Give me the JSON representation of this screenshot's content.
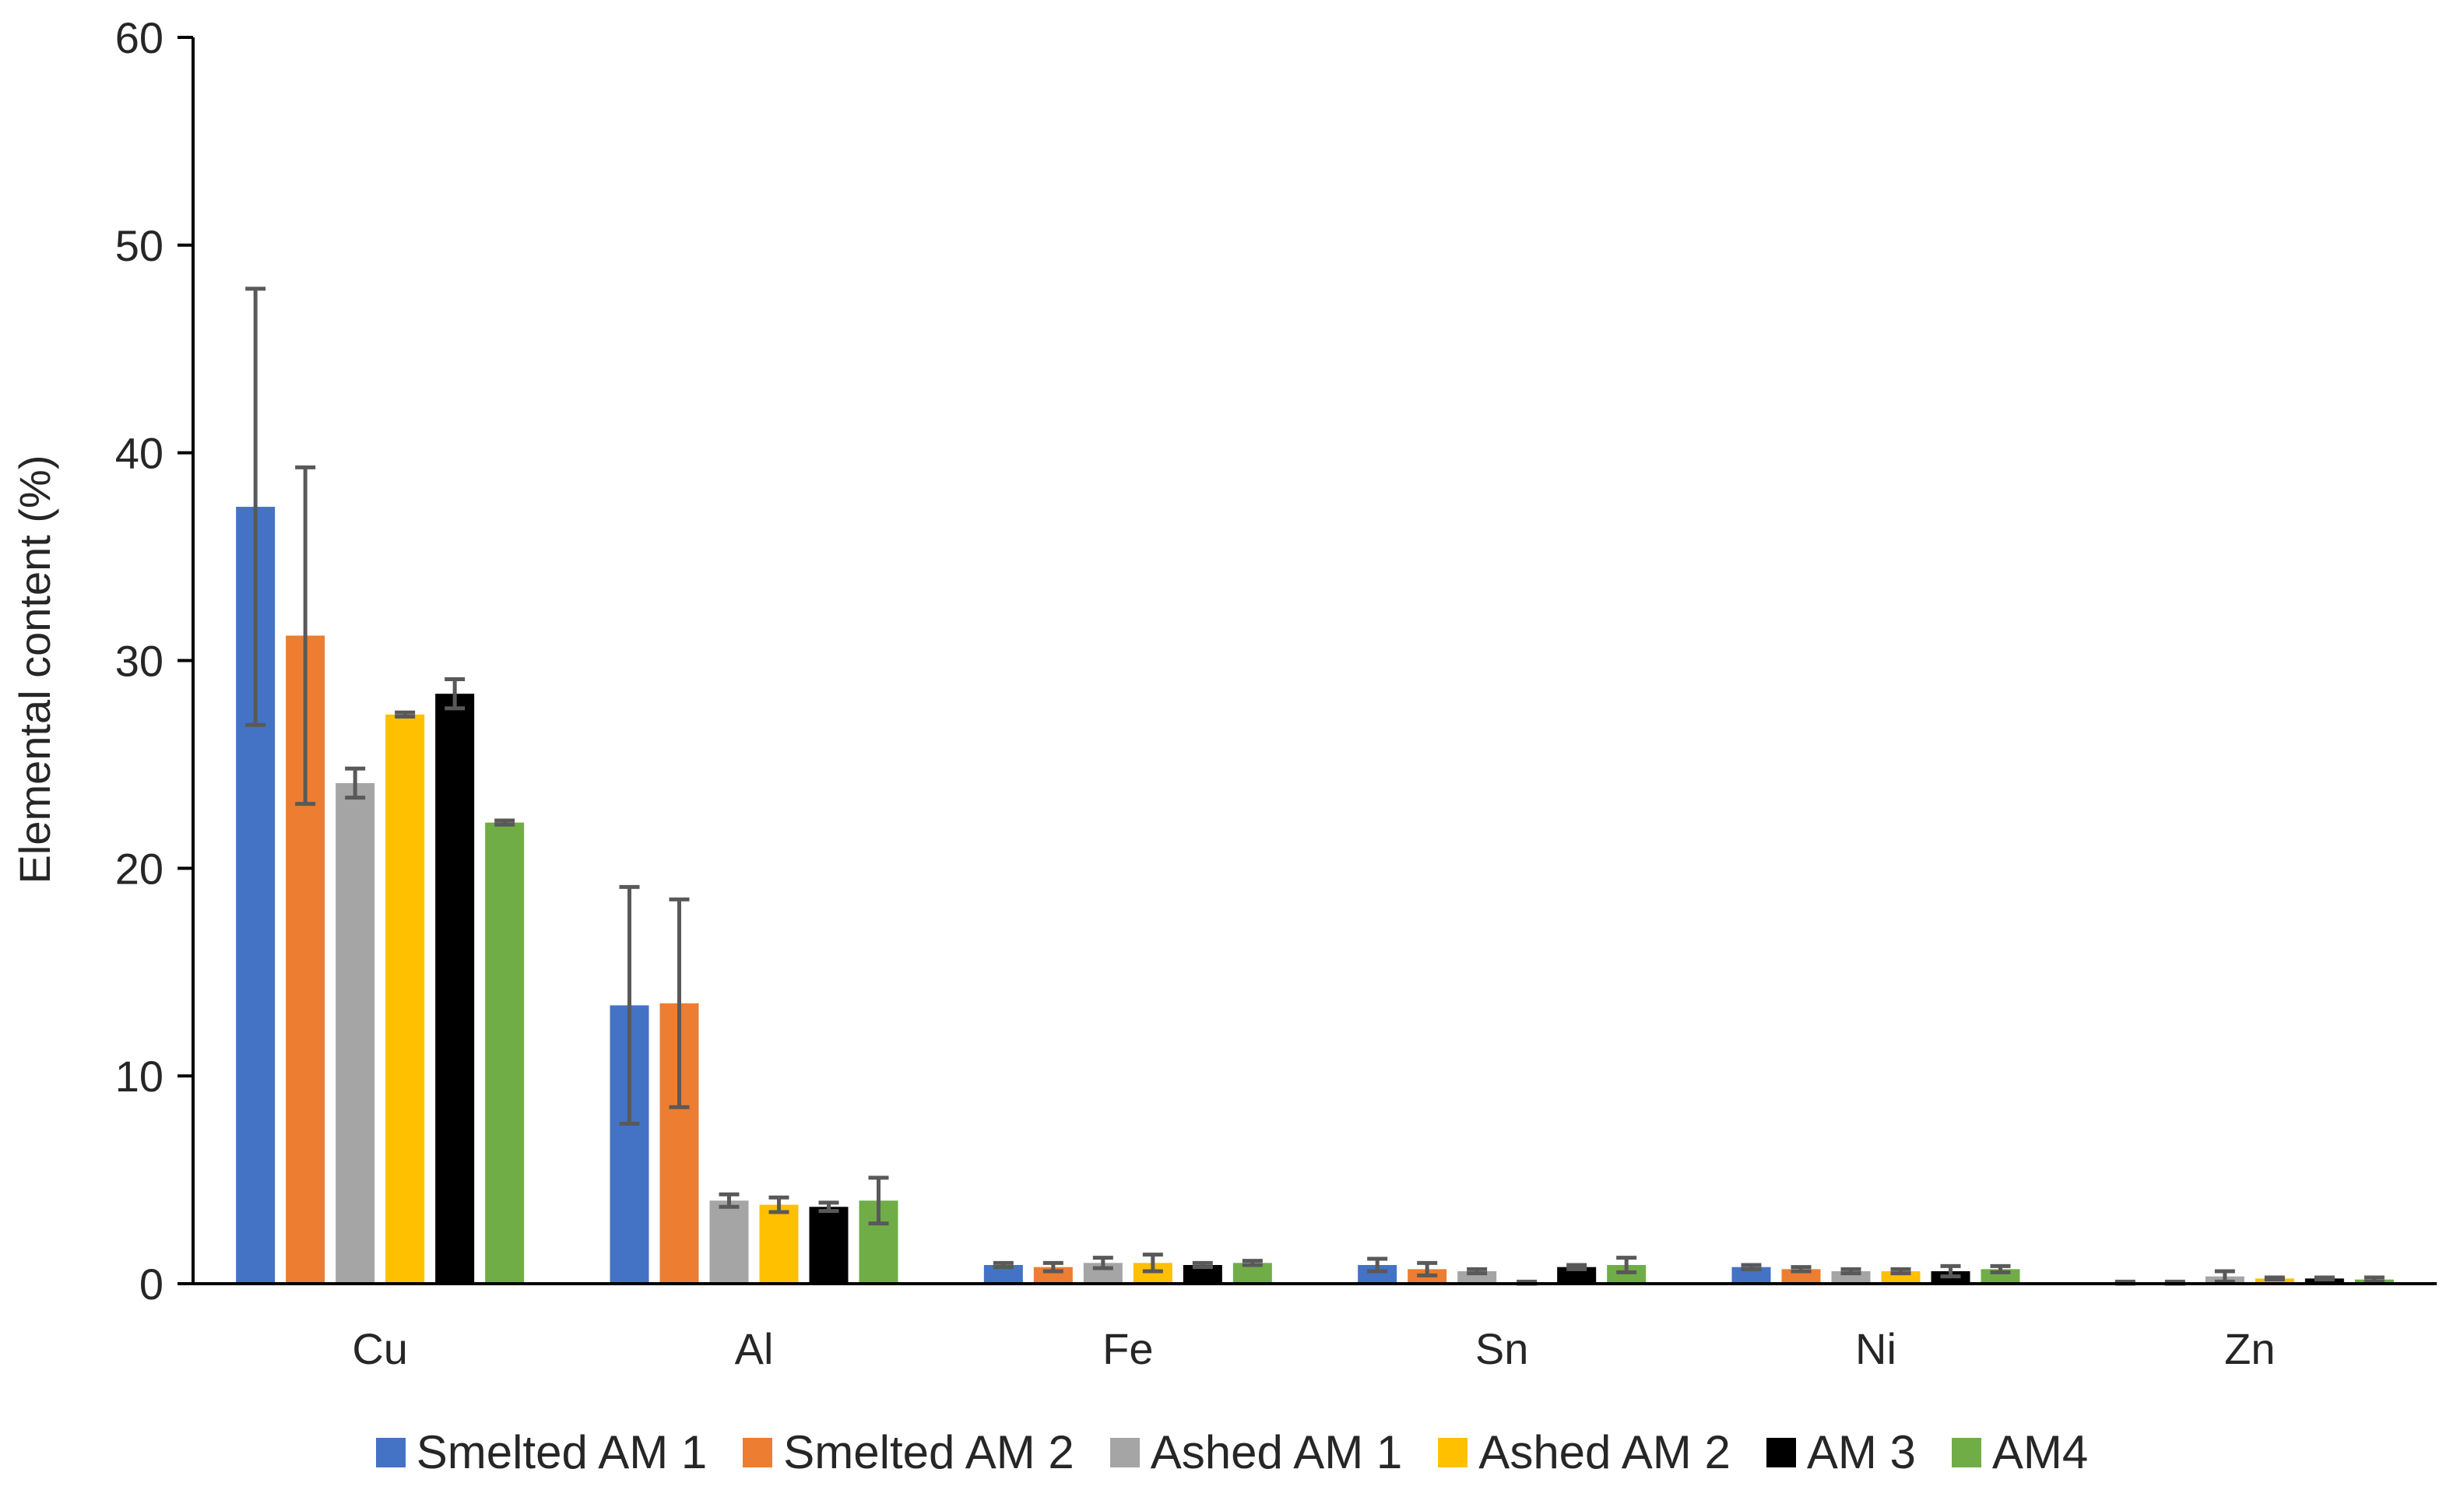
{
  "chart_data": {
    "type": "bar",
    "title": "",
    "xlabel": "",
    "ylabel": "Elemental content (%)",
    "ylim": [
      0,
      60
    ],
    "yticks": [
      0,
      10,
      20,
      30,
      40,
      50,
      60
    ],
    "grid": false,
    "legend_position": "bottom",
    "categories": [
      "Cu",
      "Al",
      "Fe",
      "Sn",
      "Ni",
      "Zn"
    ],
    "series": [
      {
        "name": "Smelted AM 1",
        "color": "#4472C4",
        "values": [
          37.4,
          13.4,
          0.9,
          0.9,
          0.8,
          0.05
        ],
        "errors": [
          10.5,
          5.7,
          0.1,
          0.3,
          0.1,
          0.05
        ]
      },
      {
        "name": "Smelted AM 2",
        "color": "#ED7D31",
        "values": [
          31.2,
          13.5,
          0.8,
          0.7,
          0.7,
          0.05
        ],
        "errors": [
          8.1,
          5.0,
          0.2,
          0.3,
          0.1,
          0.05
        ]
      },
      {
        "name": "Ashed AM 1",
        "color": "#A5A5A5",
        "values": [
          24.1,
          4.0,
          1.0,
          0.6,
          0.6,
          0.35
        ],
        "errors": [
          0.7,
          0.3,
          0.25,
          0.1,
          0.1,
          0.25
        ]
      },
      {
        "name": "Ashed AM 2",
        "color": "#FFC000",
        "values": [
          27.4,
          3.8,
          1.0,
          0.05,
          0.6,
          0.25
        ],
        "errors": [
          0.1,
          0.35,
          0.4,
          0.05,
          0.1,
          0.05
        ]
      },
      {
        "name": "AM 3",
        "color": "#000000",
        "values": [
          28.4,
          3.7,
          0.9,
          0.8,
          0.6,
          0.25
        ],
        "errors": [
          0.7,
          0.2,
          0.1,
          0.1,
          0.25,
          0.05
        ]
      },
      {
        "name": "AM4",
        "color": "#70AD47",
        "values": [
          22.2,
          4.0,
          1.0,
          0.9,
          0.7,
          0.2
        ],
        "errors": [
          0.1,
          1.1,
          0.1,
          0.35,
          0.15,
          0.1
        ]
      }
    ]
  }
}
